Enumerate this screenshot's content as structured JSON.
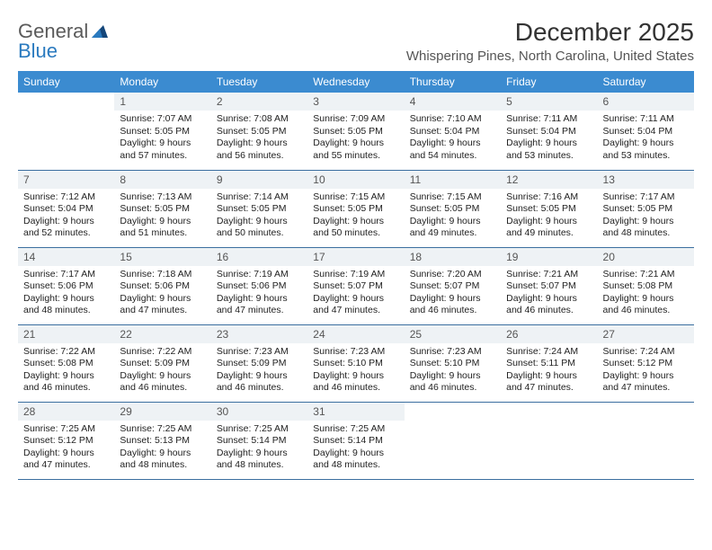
{
  "brand": {
    "part1": "General",
    "part2": "Blue"
  },
  "title": "December 2025",
  "location": "Whispering Pines, North Carolina, United States",
  "colors": {
    "header_bg": "#3b8bd0",
    "header_text": "#ffffff",
    "daynum_bg": "#eef2f5",
    "row_border": "#3b6fa0",
    "brand_blue": "#2a7abf",
    "brand_gray": "#5a5a5a",
    "page_bg": "#ffffff"
  },
  "columns": [
    "Sunday",
    "Monday",
    "Tuesday",
    "Wednesday",
    "Thursday",
    "Friday",
    "Saturday"
  ],
  "start_offset": 1,
  "days": [
    {
      "n": "1",
      "sunrise": "7:07 AM",
      "sunset": "5:05 PM",
      "daylight": "9 hours and 57 minutes."
    },
    {
      "n": "2",
      "sunrise": "7:08 AM",
      "sunset": "5:05 PM",
      "daylight": "9 hours and 56 minutes."
    },
    {
      "n": "3",
      "sunrise": "7:09 AM",
      "sunset": "5:05 PM",
      "daylight": "9 hours and 55 minutes."
    },
    {
      "n": "4",
      "sunrise": "7:10 AM",
      "sunset": "5:04 PM",
      "daylight": "9 hours and 54 minutes."
    },
    {
      "n": "5",
      "sunrise": "7:11 AM",
      "sunset": "5:04 PM",
      "daylight": "9 hours and 53 minutes."
    },
    {
      "n": "6",
      "sunrise": "7:11 AM",
      "sunset": "5:04 PM",
      "daylight": "9 hours and 53 minutes."
    },
    {
      "n": "7",
      "sunrise": "7:12 AM",
      "sunset": "5:04 PM",
      "daylight": "9 hours and 52 minutes."
    },
    {
      "n": "8",
      "sunrise": "7:13 AM",
      "sunset": "5:05 PM",
      "daylight": "9 hours and 51 minutes."
    },
    {
      "n": "9",
      "sunrise": "7:14 AM",
      "sunset": "5:05 PM",
      "daylight": "9 hours and 50 minutes."
    },
    {
      "n": "10",
      "sunrise": "7:15 AM",
      "sunset": "5:05 PM",
      "daylight": "9 hours and 50 minutes."
    },
    {
      "n": "11",
      "sunrise": "7:15 AM",
      "sunset": "5:05 PM",
      "daylight": "9 hours and 49 minutes."
    },
    {
      "n": "12",
      "sunrise": "7:16 AM",
      "sunset": "5:05 PM",
      "daylight": "9 hours and 49 minutes."
    },
    {
      "n": "13",
      "sunrise": "7:17 AM",
      "sunset": "5:05 PM",
      "daylight": "9 hours and 48 minutes."
    },
    {
      "n": "14",
      "sunrise": "7:17 AM",
      "sunset": "5:06 PM",
      "daylight": "9 hours and 48 minutes."
    },
    {
      "n": "15",
      "sunrise": "7:18 AM",
      "sunset": "5:06 PM",
      "daylight": "9 hours and 47 minutes."
    },
    {
      "n": "16",
      "sunrise": "7:19 AM",
      "sunset": "5:06 PM",
      "daylight": "9 hours and 47 minutes."
    },
    {
      "n": "17",
      "sunrise": "7:19 AM",
      "sunset": "5:07 PM",
      "daylight": "9 hours and 47 minutes."
    },
    {
      "n": "18",
      "sunrise": "7:20 AM",
      "sunset": "5:07 PM",
      "daylight": "9 hours and 46 minutes."
    },
    {
      "n": "19",
      "sunrise": "7:21 AM",
      "sunset": "5:07 PM",
      "daylight": "9 hours and 46 minutes."
    },
    {
      "n": "20",
      "sunrise": "7:21 AM",
      "sunset": "5:08 PM",
      "daylight": "9 hours and 46 minutes."
    },
    {
      "n": "21",
      "sunrise": "7:22 AM",
      "sunset": "5:08 PM",
      "daylight": "9 hours and 46 minutes."
    },
    {
      "n": "22",
      "sunrise": "7:22 AM",
      "sunset": "5:09 PM",
      "daylight": "9 hours and 46 minutes."
    },
    {
      "n": "23",
      "sunrise": "7:23 AM",
      "sunset": "5:09 PM",
      "daylight": "9 hours and 46 minutes."
    },
    {
      "n": "24",
      "sunrise": "7:23 AM",
      "sunset": "5:10 PM",
      "daylight": "9 hours and 46 minutes."
    },
    {
      "n": "25",
      "sunrise": "7:23 AM",
      "sunset": "5:10 PM",
      "daylight": "9 hours and 46 minutes."
    },
    {
      "n": "26",
      "sunrise": "7:24 AM",
      "sunset": "5:11 PM",
      "daylight": "9 hours and 47 minutes."
    },
    {
      "n": "27",
      "sunrise": "7:24 AM",
      "sunset": "5:12 PM",
      "daylight": "9 hours and 47 minutes."
    },
    {
      "n": "28",
      "sunrise": "7:25 AM",
      "sunset": "5:12 PM",
      "daylight": "9 hours and 47 minutes."
    },
    {
      "n": "29",
      "sunrise": "7:25 AM",
      "sunset": "5:13 PM",
      "daylight": "9 hours and 48 minutes."
    },
    {
      "n": "30",
      "sunrise": "7:25 AM",
      "sunset": "5:14 PM",
      "daylight": "9 hours and 48 minutes."
    },
    {
      "n": "31",
      "sunrise": "7:25 AM",
      "sunset": "5:14 PM",
      "daylight": "9 hours and 48 minutes."
    }
  ],
  "labels": {
    "sunrise": "Sunrise:",
    "sunset": "Sunset:",
    "daylight": "Daylight:"
  }
}
